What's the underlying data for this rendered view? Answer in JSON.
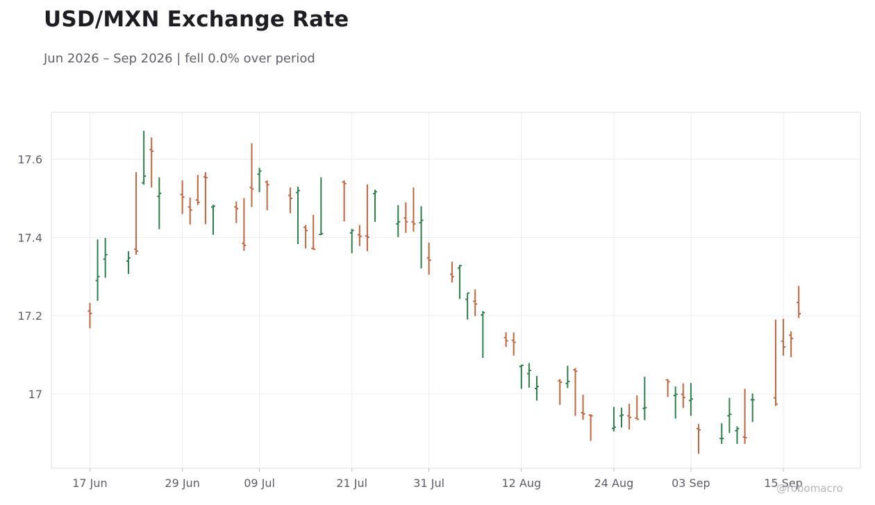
{
  "title": "USD/MXN Exchange Rate",
  "subtitle": "Jun 2026 – Sep 2026 | fell 0.0% over period",
  "watermark": "@robomacro",
  "colors": {
    "up": "#2e7d4f",
    "down": "#c0643f",
    "grid": "#ececec",
    "frame": "#dcdcdc",
    "text": "#5c5c66"
  },
  "chart_data": {
    "type": "ohlc",
    "title": "USD/MXN Exchange Rate",
    "subtitle": "Jun 2026 – Sep 2026 | fell 0.0% over period",
    "grid": true,
    "xlim": [
      "2026-06-12",
      "2026-09-25"
    ],
    "ylim": [
      16.81,
      17.72
    ],
    "y_ticks": [
      {
        "value": 17.0,
        "label": "17"
      },
      {
        "value": 17.2,
        "label": "17.2"
      },
      {
        "value": 17.4,
        "label": "17.4"
      },
      {
        "value": 17.6,
        "label": "17.6"
      }
    ],
    "x_ticks": [
      {
        "date": "2026-06-17",
        "label": "17 Jun"
      },
      {
        "date": "2026-06-29",
        "label": "29 Jun"
      },
      {
        "date": "2026-07-09",
        "label": "09 Jul"
      },
      {
        "date": "2026-07-21",
        "label": "21 Jul"
      },
      {
        "date": "2026-07-31",
        "label": "31 Jul"
      },
      {
        "date": "2026-08-12",
        "label": "12 Aug"
      },
      {
        "date": "2026-08-24",
        "label": "24 Aug"
      },
      {
        "date": "2026-09-03",
        "label": "03 Sep"
      },
      {
        "date": "2026-09-15",
        "label": "15 Sep"
      }
    ],
    "series": [
      {
        "x": [
          "2026-06-17",
          "2026-06-18",
          "2026-06-19",
          "2026-06-22",
          "2026-06-23",
          "2026-06-24",
          "2026-06-25",
          "2026-06-26",
          "2026-06-29",
          "2026-06-30",
          "2026-07-01",
          "2026-07-02",
          "2026-07-03",
          "2026-07-06",
          "2026-07-07",
          "2026-07-08",
          "2026-07-09",
          "2026-07-10",
          "2026-07-13",
          "2026-07-14",
          "2026-07-15",
          "2026-07-16",
          "2026-07-17",
          "2026-07-20",
          "2026-07-21",
          "2026-07-22",
          "2026-07-23",
          "2026-07-24",
          "2026-07-27",
          "2026-07-28",
          "2026-07-29",
          "2026-07-30",
          "2026-07-31",
          "2026-08-03",
          "2026-08-04",
          "2026-08-05",
          "2026-08-06",
          "2026-08-07",
          "2026-08-10",
          "2026-08-11",
          "2026-08-12",
          "2026-08-13",
          "2026-08-14",
          "2026-08-17",
          "2026-08-18",
          "2026-08-19",
          "2026-08-20",
          "2026-08-21",
          "2026-08-24",
          "2026-08-25",
          "2026-08-26",
          "2026-08-27",
          "2026-08-28",
          "2026-08-31",
          "2026-09-01",
          "2026-09-02",
          "2026-09-03",
          "2026-09-04",
          "2026-09-07",
          "2026-09-08",
          "2026-09-09",
          "2026-09-10",
          "2026-09-11",
          "2026-09-14",
          "2026-09-15",
          "2026-09-16",
          "2026-09-17"
        ],
        "open": [
          17.212,
          17.29,
          17.345,
          17.34,
          17.37,
          17.54,
          17.625,
          17.505,
          17.51,
          17.478,
          17.496,
          17.555,
          17.478,
          17.478,
          17.385,
          17.528,
          17.562,
          17.542,
          17.508,
          17.515,
          17.426,
          17.372,
          17.408,
          17.542,
          17.412,
          17.407,
          17.404,
          17.512,
          17.435,
          17.45,
          17.44,
          17.438,
          17.348,
          17.306,
          17.322,
          17.242,
          17.237,
          17.202,
          17.144,
          17.137,
          17.07,
          17.052,
          17.014,
          17.034,
          17.027,
          17.062,
          16.952,
          16.946,
          16.912,
          16.944,
          16.944,
          16.938,
          16.963,
          17.036,
          16.996,
          16.999,
          16.983,
          16.911,
          16.886,
          16.944,
          16.906,
          16.89,
          16.985,
          16.99,
          17.135,
          17.15,
          17.234
        ],
        "high": [
          17.233,
          17.395,
          17.399,
          17.365,
          17.567,
          17.673,
          17.656,
          17.554,
          17.546,
          17.502,
          17.56,
          17.567,
          17.484,
          17.492,
          17.501,
          17.641,
          17.578,
          17.546,
          17.528,
          17.53,
          17.432,
          17.458,
          17.554,
          17.546,
          17.422,
          17.432,
          17.536,
          17.522,
          17.483,
          17.49,
          17.528,
          17.48,
          17.387,
          17.338,
          17.33,
          17.258,
          17.267,
          17.212,
          17.158,
          17.157,
          17.075,
          17.079,
          17.046,
          17.038,
          17.072,
          17.066,
          16.998,
          16.948,
          16.967,
          16.965,
          16.975,
          16.996,
          17.044,
          17.038,
          17.019,
          17.027,
          17.028,
          16.923,
          16.925,
          16.99,
          16.917,
          17.013,
          17.001,
          17.19,
          17.192,
          17.16,
          17.276
        ],
        "low": [
          17.168,
          17.238,
          17.297,
          17.307,
          17.356,
          17.535,
          17.528,
          17.421,
          17.46,
          17.433,
          17.483,
          17.434,
          17.407,
          17.437,
          17.366,
          17.478,
          17.516,
          17.47,
          17.462,
          17.383,
          17.372,
          17.369,
          17.406,
          17.441,
          17.36,
          17.378,
          17.365,
          17.44,
          17.401,
          17.412,
          17.415,
          17.321,
          17.305,
          17.285,
          17.243,
          17.19,
          17.199,
          17.092,
          17.12,
          17.098,
          17.013,
          17.016,
          16.983,
          16.972,
          17.015,
          16.944,
          16.934,
          16.88,
          16.904,
          16.914,
          16.909,
          16.936,
          16.933,
          16.992,
          16.937,
          16.964,
          16.944,
          16.847,
          16.872,
          16.9,
          16.872,
          16.872,
          16.928,
          16.969,
          17.098,
          17.094,
          17.194
        ],
        "close": [
          17.206,
          17.3,
          17.356,
          17.348,
          17.365,
          17.557,
          17.621,
          17.513,
          17.503,
          17.47,
          17.49,
          17.553,
          17.48,
          17.474,
          17.38,
          17.524,
          17.57,
          17.535,
          17.5,
          17.52,
          17.418,
          17.37,
          17.41,
          17.538,
          17.418,
          17.403,
          17.401,
          17.517,
          17.44,
          17.44,
          17.435,
          17.444,
          17.342,
          17.3,
          17.328,
          17.258,
          17.23,
          17.208,
          17.136,
          17.132,
          17.073,
          17.06,
          17.019,
          17.03,
          17.032,
          17.058,
          16.949,
          16.944,
          16.915,
          16.946,
          16.94,
          16.935,
          16.965,
          17.031,
          16.999,
          16.991,
          16.987,
          16.908,
          16.886,
          16.948,
          16.911,
          16.888,
          16.985,
          16.974,
          17.12,
          17.142,
          17.205
        ]
      }
    ]
  }
}
